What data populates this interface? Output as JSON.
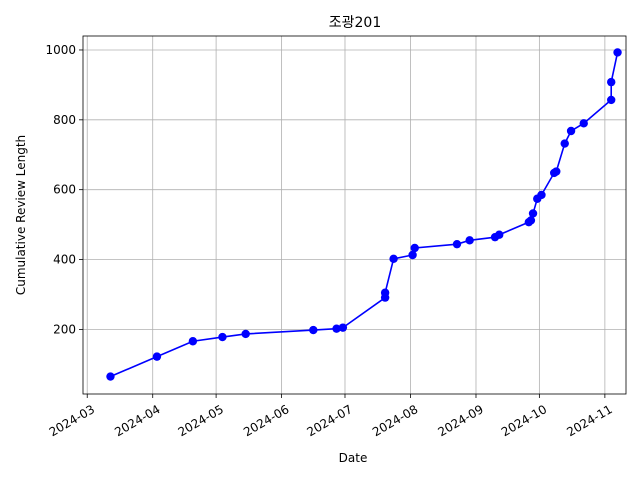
{
  "chart_data": {
    "type": "line",
    "title": "조광201",
    "xlabel": "Date",
    "ylabel": "Cumulative Review Length",
    "x_axis_type": "date",
    "xlim": [
      "2024-02-28",
      "2024-11-11"
    ],
    "ylim": [
      15,
      1040
    ],
    "x_ticks": [
      "2024-03",
      "2024-04",
      "2024-05",
      "2024-06",
      "2024-07",
      "2024-08",
      "2024-09",
      "2024-10",
      "2024-11"
    ],
    "y_ticks": [
      200,
      400,
      600,
      800,
      1000
    ],
    "grid": true,
    "line_color": "#0000ff",
    "marker": "circle",
    "series": [
      {
        "x": [
          "2024-03-12",
          "2024-04-03",
          "2024-04-20",
          "2024-05-04",
          "2024-05-15",
          "2024-06-16",
          "2024-06-27",
          "2024-06-30",
          "2024-07-20",
          "2024-07-20",
          "2024-07-24",
          "2024-08-02",
          "2024-08-03",
          "2024-08-23",
          "2024-08-29",
          "2024-09-10",
          "2024-09-12",
          "2024-09-26",
          "2024-09-27",
          "2024-09-28",
          "2024-09-30",
          "2024-10-02",
          "2024-10-08",
          "2024-10-09",
          "2024-10-13",
          "2024-10-16",
          "2024-10-22",
          "2024-11-04",
          "2024-11-04",
          "2024-11-07"
        ],
        "y": [
          65,
          122,
          166,
          178,
          187,
          198,
          202,
          205,
          291,
          305,
          402,
          413,
          433,
          444,
          455,
          464,
          471,
          507,
          512,
          532,
          574,
          585,
          648,
          652,
          732,
          768,
          790,
          857,
          908,
          993
        ]
      }
    ]
  }
}
